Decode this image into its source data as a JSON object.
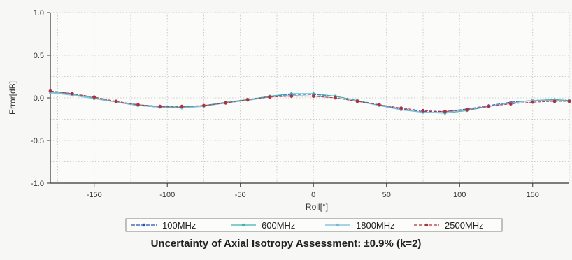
{
  "chart_data": {
    "type": "line",
    "title": "",
    "xlabel": "Roll[°]",
    "ylabel": "Error[dB]",
    "xlim": [
      -180,
      175
    ],
    "ylim": [
      -1.0,
      1.0
    ],
    "x_ticks": [
      -150,
      -100,
      -50,
      0,
      50,
      100,
      150
    ],
    "y_ticks": [
      1.0,
      0.5,
      0.0,
      -0.5,
      -1.0
    ],
    "y_tick_labels": [
      "1.0",
      "0.5",
      "0.0",
      "-0.5",
      "-1.0"
    ],
    "grid": true,
    "legend_position": "bottom",
    "x": [
      -180,
      -165,
      -150,
      -135,
      -120,
      -105,
      -90,
      -75,
      -60,
      -45,
      -30,
      -15,
      0,
      15,
      30,
      45,
      60,
      75,
      90,
      105,
      120,
      135,
      150,
      165,
      175
    ],
    "series": [
      {
        "name": "100MHz",
        "color": "#2b4fb4",
        "values": [
          0.08,
          0.05,
          0.0,
          -0.05,
          -0.09,
          -0.11,
          -0.11,
          -0.09,
          -0.06,
          -0.02,
          0.02,
          0.04,
          0.04,
          0.02,
          -0.03,
          -0.08,
          -0.13,
          -0.16,
          -0.16,
          -0.13,
          -0.09,
          -0.05,
          -0.03,
          -0.02,
          -0.03
        ]
      },
      {
        "name": "600MHz",
        "color": "#3fb3a8",
        "values": [
          0.07,
          0.04,
          0.0,
          -0.05,
          -0.08,
          -0.1,
          -0.11,
          -0.09,
          -0.05,
          -0.02,
          0.02,
          0.05,
          0.05,
          0.02,
          -0.03,
          -0.09,
          -0.14,
          -0.17,
          -0.18,
          -0.15,
          -0.1,
          -0.06,
          -0.03,
          -0.02,
          -0.03
        ]
      },
      {
        "name": "1800MHz",
        "color": "#78b8d8",
        "values": [
          0.06,
          0.03,
          -0.01,
          -0.05,
          -0.09,
          -0.11,
          -0.12,
          -0.1,
          -0.06,
          -0.03,
          0.01,
          0.03,
          0.02,
          0.0,
          -0.04,
          -0.09,
          -0.14,
          -0.17,
          -0.17,
          -0.14,
          -0.1,
          -0.06,
          -0.03,
          -0.03,
          -0.04
        ]
      },
      {
        "name": "2500MHz",
        "color": "#b0313c",
        "values": [
          0.08,
          0.05,
          0.01,
          -0.04,
          -0.08,
          -0.1,
          -0.1,
          -0.09,
          -0.06,
          -0.02,
          0.01,
          0.02,
          0.02,
          0.0,
          -0.04,
          -0.08,
          -0.12,
          -0.15,
          -0.16,
          -0.14,
          -0.1,
          -0.07,
          -0.05,
          -0.04,
          -0.04
        ]
      }
    ]
  },
  "caption": "Uncertainty of Axial Isotropy Assessment: ±0.9% (k=2)"
}
